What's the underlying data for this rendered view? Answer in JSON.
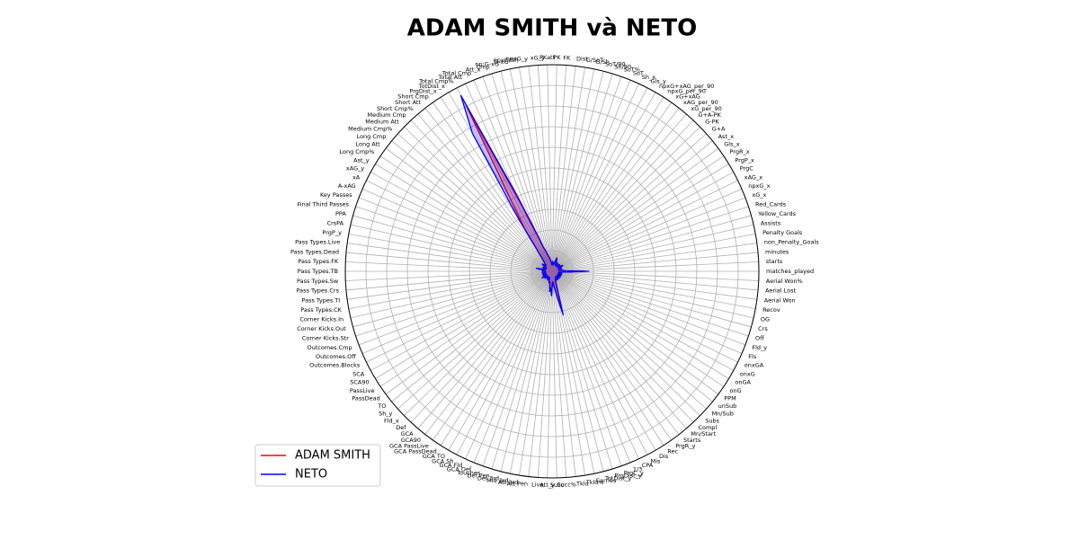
{
  "chart_data": {
    "type": "radar",
    "title": "ADAM SMITH và NETO",
    "categories": [
      "matches_played",
      "starts",
      "minutes",
      "non_Penalty_Goals",
      "Penalty Goals",
      "Assists",
      "Yellow_Cards",
      "Red_Cards",
      "xG_x",
      "npxG_x",
      "xAG_x",
      "PrgC",
      "PrgP_x",
      "PrgR_x",
      "Gls_x",
      "Ast_x",
      "G+A",
      "G-PK",
      "G+A-PK",
      "xG_per_90",
      "xAG_per_90",
      "xG+xAG",
      "npxG_per_90",
      "npxG+xAG_per_90",
      "Gls_y",
      "Sh_x",
      "SoT",
      "SoT%",
      "Sh/90",
      "SoT/90",
      "G/Sh",
      "G/SoT",
      "Dist",
      "FK",
      "PK",
      "PKatt",
      "xG_y",
      "npxG_y",
      "npxG/Sh",
      "G-xG",
      "np:G-xG",
      "Cmp",
      "Att_x",
      "Total Cmp",
      "Total Att",
      "Total Cmp%",
      "TotDist_x",
      "PrgDist_x",
      "Short Cmp",
      "Short Att",
      "Short Cmp%",
      "Medium Cmp",
      "Medium Att",
      "Medium Cmp%",
      "Long Cmp",
      "Long Att",
      "Long Cmp%",
      "Ast_y",
      "xAG_y",
      "xA",
      "A-xAG",
      "Key Passes",
      "Final Third Passes",
      "PPA",
      "CrsPA",
      "PrgP_y",
      "Pass Types.Live",
      "Pass Types.Dead",
      "Pass Types.FK",
      "Pass Types.TB",
      "Pass Types.Sw",
      "Pass Types.Crs",
      "Pass Types.TI",
      "Pass Types.CK",
      "Corner Kicks.In",
      "Corner Kicks.Out",
      "Corner Kicks.Str",
      "Outcomes.Cmp",
      "Outcomes.Off",
      "Outcomes.Blocks",
      "SCA",
      "SCA90",
      "PassLive",
      "PassDead",
      "TO",
      "Sh_y",
      "Fld_x",
      "Def",
      "GCA",
      "GCA90",
      "GCA PassLive",
      "GCA PassDead",
      "GCA TO",
      "GCA Sh",
      "GCA Fld",
      "GCA Def",
      "Touches",
      "Def Pen",
      "Def 3rd",
      "Mid 3rd",
      "Att 3rd",
      "Att Pen",
      "Live",
      "Att_y",
      "Succ",
      "Succ%",
      "Tkld",
      "Tkld%",
      "Carries",
      "TotDist_y",
      "PrgDist_y",
      "PrgC_y",
      "1/3",
      "CPA",
      "Mis",
      "Dis",
      "Rec",
      "PrgR_y",
      "Starts",
      "Mn/Start",
      "Compl",
      "Subs",
      "Mn/Sub",
      "unSub",
      "PPM",
      "onG",
      "onGA",
      "onxG",
      "onxGA",
      "Fls",
      "Fld_y",
      "Off",
      "Crs",
      "OG",
      "Recov",
      "Aerial Won",
      "Aerial Lost",
      "Aerial Won%"
    ],
    "series": [
      {
        "name": "ADAM SMITH",
        "color": "#ff0000",
        "values": [
          16,
          6,
          5,
          4,
          3,
          4,
          5,
          3,
          4,
          4,
          5,
          6,
          5,
          4,
          3,
          4,
          5,
          4,
          4,
          3,
          4,
          5,
          4,
          4,
          3,
          5,
          6,
          7,
          5,
          4,
          4,
          3,
          4,
          5,
          4,
          3,
          4,
          5,
          6,
          7,
          8,
          10,
          12,
          18,
          35,
          90,
          40,
          25,
          12,
          8,
          6,
          5,
          4,
          4,
          5,
          6,
          5,
          4,
          3,
          4,
          5,
          4,
          3,
          4,
          5,
          7,
          4,
          5,
          3,
          4,
          4,
          5,
          4,
          3,
          4,
          5,
          4,
          3,
          4,
          5,
          4,
          3,
          6,
          4,
          3,
          4,
          5,
          4,
          3,
          4,
          4,
          3,
          4,
          5,
          4,
          3,
          4,
          5,
          6,
          5,
          7,
          10,
          8,
          11,
          6,
          5,
          7,
          9,
          13,
          20,
          8,
          5,
          4,
          5,
          4,
          3,
          4,
          5,
          4,
          3,
          4,
          5,
          4,
          3,
          4,
          5,
          4,
          3,
          4,
          5,
          4,
          3,
          4,
          5,
          4,
          3,
          4,
          8
        ]
      },
      {
        "name": "NETO",
        "color": "#0000ff",
        "values": [
          18,
          6,
          5,
          4,
          3,
          4,
          5,
          3,
          4,
          4,
          5,
          6,
          5,
          4,
          3,
          4,
          5,
          4,
          4,
          3,
          4,
          5,
          4,
          4,
          3,
          5,
          6,
          7,
          5,
          4,
          4,
          3,
          4,
          5,
          4,
          3,
          4,
          5,
          6,
          7,
          8,
          10,
          12,
          20,
          40,
          96,
          77,
          30,
          12,
          8,
          6,
          5,
          4,
          4,
          5,
          6,
          5,
          4,
          3,
          4,
          5,
          4,
          3,
          4,
          5,
          8,
          4,
          5,
          3,
          4,
          4,
          5,
          4,
          3,
          4,
          5,
          4,
          3,
          4,
          5,
          4,
          3,
          6,
          4,
          3,
          4,
          5,
          4,
          3,
          4,
          4,
          3,
          4,
          5,
          4,
          3,
          4,
          5,
          6,
          5,
          7,
          10,
          8,
          12,
          6,
          5,
          7,
          9,
          14,
          22,
          8,
          5,
          4,
          5,
          4,
          3,
          4,
          5,
          4,
          3,
          4,
          5,
          4,
          3,
          4,
          5,
          4,
          3,
          4,
          5,
          4,
          3,
          4,
          5,
          4,
          3,
          4,
          8
        ]
      }
    ],
    "ylim": [
      0,
      100
    ],
    "yticks": [
      10,
      20,
      30,
      40,
      50,
      60,
      70,
      80,
      90,
      100
    ],
    "grid": true,
    "legend": "lower left"
  }
}
